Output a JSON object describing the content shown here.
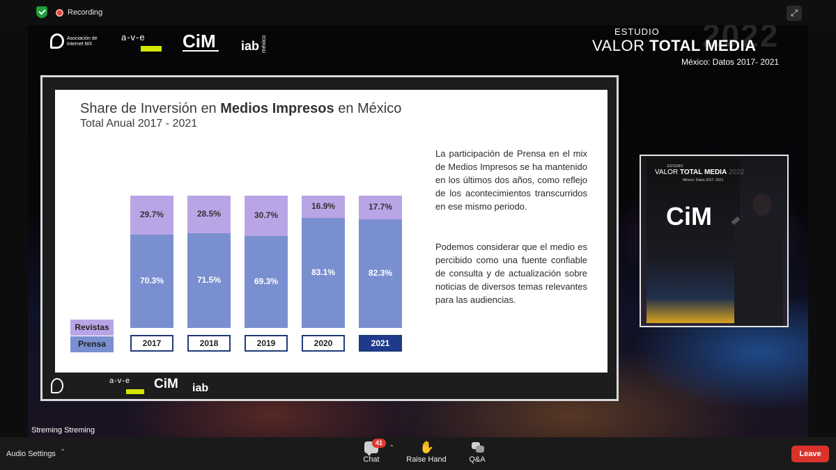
{
  "topbar": {
    "recording_label": "Recording",
    "icons": {
      "security": "shield-check-icon",
      "recording": "record-dot-icon",
      "expand": "expand-arrows-icon"
    }
  },
  "stage": {
    "logos": {
      "asociacion": "Asociación de Internet MX",
      "ave": "a-v-e",
      "cim": "CiM",
      "iab": "iab",
      "iab_country": "méxico"
    },
    "study": {
      "label": "ESTUDIO",
      "year": "2022",
      "title_prefix": "VALOR ",
      "title_bold": "TOTAL MEDIA",
      "subtitle": "México: Datos 2017- 2021"
    },
    "speaker_banner": {
      "label": "ESTUDIO",
      "title_prefix": "VALOR ",
      "title_bold": "TOTAL MEDIA",
      "year": "2022",
      "subtitle": "México: Datos 2017- 2021",
      "logo": "CiM"
    },
    "stream_label": "Streming Streming"
  },
  "slide": {
    "title_pre": "Share de Inversión en ",
    "title_bold": "Medios Impresos",
    "title_post": " en México",
    "subtitle": "Total Anual 2017 - 2021",
    "paragraph1": "La participación de Prensa en el mix de Medios Impresos se ha mantenido en los últimos dos años, como reflejo de los acontecimientos transcurridos en ese mismo periodo.",
    "paragraph2": "Podemos considerar que el medio es percibido como una fuente confiable de consulta y de actualización sobre noticias de diversos temas relevantes para las audiencias.",
    "colors": {
      "revistas": "#b9a5e6",
      "prensa": "#7a8fd0",
      "year_active": "#1e3a8c"
    }
  },
  "chart_data": {
    "type": "bar",
    "stacked": true,
    "categories": [
      "2017",
      "2018",
      "2019",
      "2020",
      "2021"
    ],
    "series": [
      {
        "name": "Prensa",
        "values": [
          70.3,
          71.5,
          69.3,
          83.1,
          82.3
        ],
        "labels": [
          "70.3%",
          "71.5%",
          "69.3%",
          "83.1%",
          "82.3%"
        ],
        "color": "#7a8fd0"
      },
      {
        "name": "Revistas",
        "values": [
          29.7,
          28.5,
          30.7,
          16.9,
          17.7
        ],
        "labels": [
          "29.7%",
          "28.5%",
          "30.7%",
          "16.9%",
          "17.7%"
        ],
        "color": "#b9a5e6"
      }
    ],
    "highlighted_category": "2021",
    "ylim": [
      0,
      100
    ],
    "legend_position": "bottom-left",
    "title": "Share de Inversión en Medios Impresos en México",
    "subtitle": "Total Anual 2017 - 2021"
  },
  "toolbar": {
    "audio_settings": "Audio Settings",
    "chat": "Chat",
    "chat_badge": "41",
    "raise_hand": "Raise Hand",
    "qa": "Q&A",
    "leave": "Leave"
  }
}
